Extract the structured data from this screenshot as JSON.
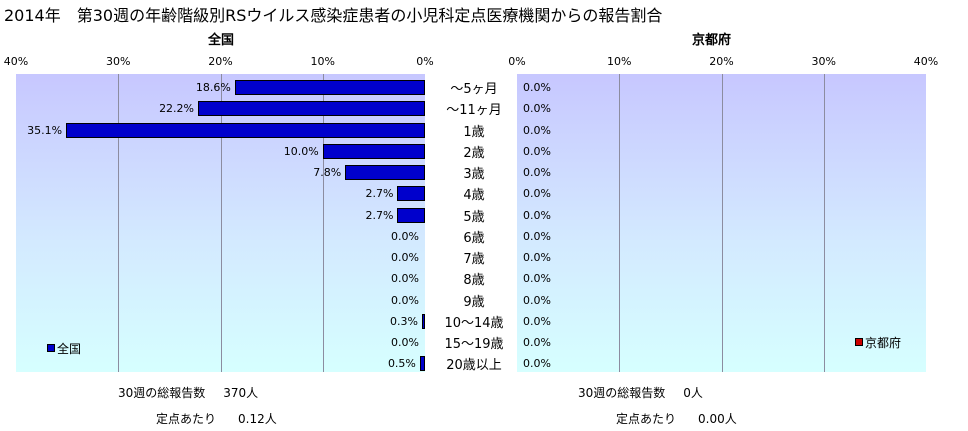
{
  "title": "2014年　第30週の年齢階級別RSウイルス感染症患者の小児科定点医療機関からの報告割合",
  "chart_data": [
    {
      "type": "bar",
      "title": "全国",
      "orientation": "horizontal",
      "x_direction": "reversed",
      "xlim": [
        0,
        40
      ],
      "xticks": [
        "40%",
        "30%",
        "20%",
        "10%",
        "0%"
      ],
      "categories": [
        "～5ヶ月",
        "～11ヶ月",
        "1歳",
        "2歳",
        "3歳",
        "4歳",
        "5歳",
        "6歳",
        "7歳",
        "8歳",
        "9歳",
        "10～14歳",
        "15～19歳",
        "20歳以上"
      ],
      "series": [
        {
          "name": "全国",
          "color": "#0000cc",
          "values": [
            18.6,
            22.2,
            35.1,
            10.0,
            7.8,
            2.7,
            2.7,
            0.0,
            0.0,
            0.0,
            0.0,
            0.3,
            0.0,
            0.5
          ],
          "labels": [
            "18.6%",
            "22.2%",
            "35.1%",
            "10.0%",
            "7.8%",
            "2.7%",
            "2.7%",
            "0.0%",
            "0.0%",
            "0.0%",
            "0.0%",
            "0.3%",
            "0.0%",
            "0.5%"
          ]
        }
      ],
      "grid": true,
      "legend_position": "bottom-left"
    },
    {
      "type": "bar",
      "title": "京都府",
      "orientation": "horizontal",
      "xlim": [
        0,
        40
      ],
      "xticks": [
        "0%",
        "10%",
        "20%",
        "30%",
        "40%"
      ],
      "categories": [
        "～5ヶ月",
        "～11ヶ月",
        "1歳",
        "2歳",
        "3歳",
        "4歳",
        "5歳",
        "6歳",
        "7歳",
        "8歳",
        "9歳",
        "10～14歳",
        "15～19歳",
        "20歳以上"
      ],
      "series": [
        {
          "name": "京都府",
          "color": "#cc0000",
          "values": [
            0,
            0,
            0,
            0,
            0,
            0,
            0,
            0,
            0,
            0,
            0,
            0,
            0,
            0
          ],
          "labels": [
            "0.0%",
            "0.0%",
            "0.0%",
            "0.0%",
            "0.0%",
            "0.0%",
            "0.0%",
            "0.0%",
            "0.0%",
            "0.0%",
            "0.0%",
            "0.0%",
            "0.0%",
            "0.0%"
          ]
        }
      ],
      "grid": true,
      "legend_position": "bottom-right"
    }
  ],
  "footer": {
    "left": {
      "total_label": "30週の総報告数",
      "total_value": "370人",
      "per_label": "定点あたり",
      "per_value": "0.12人"
    },
    "right": {
      "total_label": "30週の総報告数",
      "total_value": "0人",
      "per_label": "定点あたり",
      "per_value": "0.00人"
    }
  }
}
